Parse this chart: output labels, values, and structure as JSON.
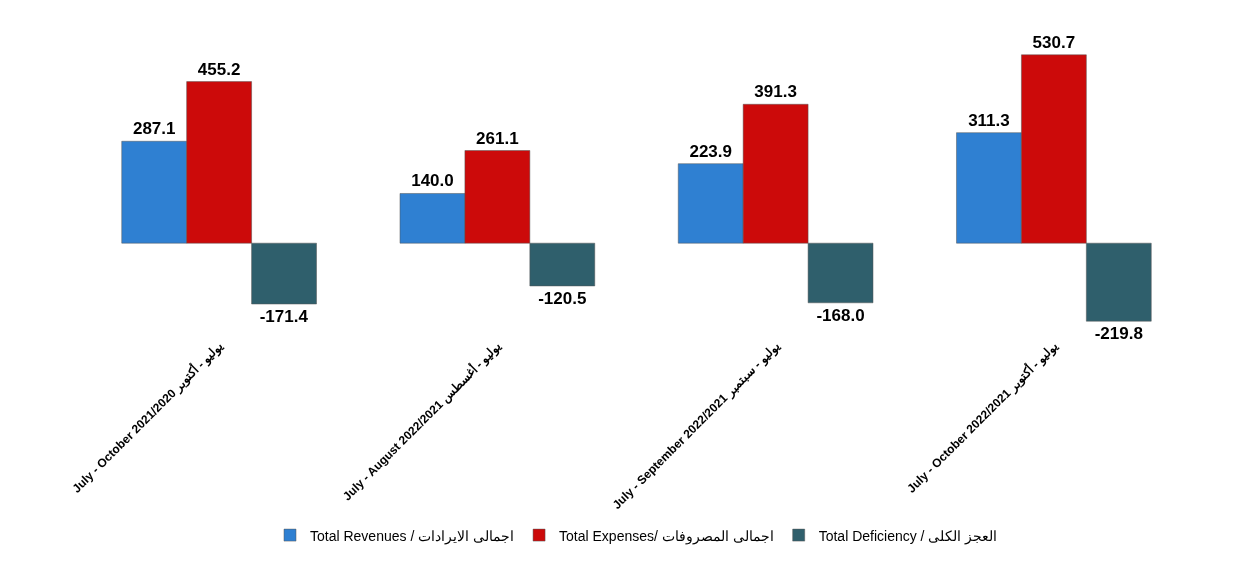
{
  "chart_data": {
    "type": "bar",
    "categories": [
      "July - October 2021/2020 يوليو - أكتوبر",
      "July - August 2022/2021 يوليو - أغسطس",
      "July - September 2022/2021 يوليو - سبتمبر",
      "July - October 2022/2021 يوليو - أكتوبر"
    ],
    "series": [
      {
        "name": "Total Revenues / اجمالى الايرادات",
        "color": "#2f80d2",
        "values": [
          287.1,
          140.0,
          223.9,
          311.3
        ],
        "value_labels": [
          "287.1",
          "140.0",
          "223.9",
          "311.3"
        ]
      },
      {
        "name": "Total Expenses/ اجمالى المصروفات",
        "color": "#cc0a0a",
        "values": [
          455.2,
          261.1,
          391.3,
          530.7
        ],
        "value_labels": [
          "455.2",
          "261.1",
          "391.3",
          "530.7"
        ]
      },
      {
        "name": "Total Deficiency / العجز الكلى",
        "color": "#2f5f6c",
        "values": [
          -171.4,
          -120.5,
          -168.0,
          -219.8
        ],
        "value_labels": [
          "-171.4",
          "-120.5",
          "-168.0",
          "-219.8"
        ]
      }
    ],
    "legend": "bottom"
  }
}
